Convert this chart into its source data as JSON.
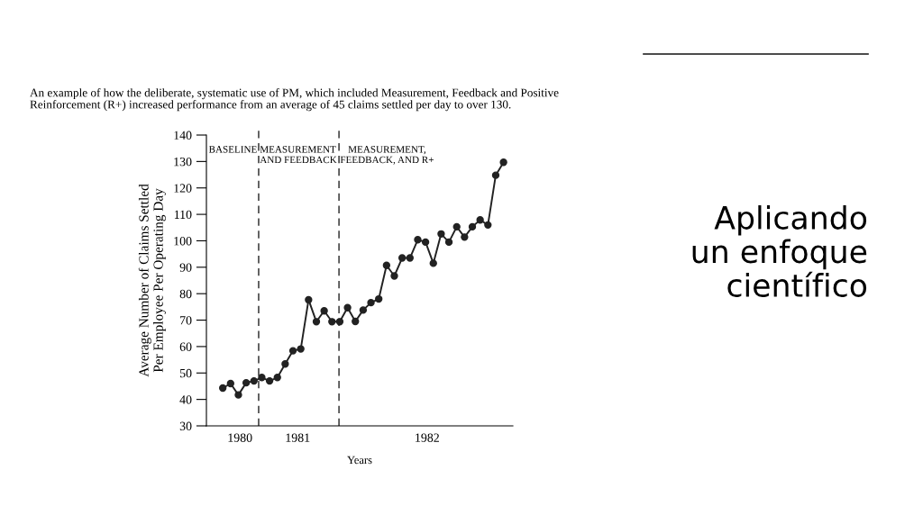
{
  "chart_data": {
    "type": "line",
    "title": "An example of how the deliberate, systematic use of PM, which included Measurement, Feedback and Positive\nReinforcement (R+) increased performance from an average of 45 claims settled per day to over 130.",
    "xlabel": "Years",
    "ylabel": "Average Number of Claims Settled\nPer Employee Per Operating Day",
    "categories": [
      null,
      null,
      null,
      null,
      null,
      null,
      null,
      null,
      null,
      null,
      null,
      null,
      null,
      null,
      null,
      null,
      null,
      null,
      null,
      null,
      null,
      null,
      null,
      null,
      null,
      null,
      null,
      null,
      null,
      null,
      null,
      null,
      null,
      null,
      null,
      null,
      null
    ],
    "series": [
      {
        "color": "#222222",
        "values": [
          44.3,
          46,
          41.7,
          46.3,
          47,
          48.3,
          47,
          48.3,
          53.4,
          58.4,
          59.1,
          77.7,
          69.4,
          73.5,
          69.4,
          69.4,
          74.7,
          69.5,
          73.8,
          76.6,
          78,
          90.7,
          86.7,
          93.5,
          93.5,
          100.4,
          99.5,
          91.5,
          102.6,
          99.5,
          105.3,
          101.4,
          105.3,
          107.9,
          106,
          124.8,
          129.7
        ]
      }
    ],
    "ylim": [
      30,
      140
    ],
    "yticks": [
      30,
      40,
      50,
      60,
      70,
      80,
      90,
      100,
      110,
      120,
      130,
      140
    ],
    "marker": "circle",
    "line_style": "solid",
    "grid": false,
    "annotations": [
      "BASELINE",
      "Aplicando\nun enfoque\ncientífico",
      "1980",
      "1981",
      "1982",
      "MEASUREMENT\nAND FEEDBACK",
      "MEASUREMENT,\nFEEDBACK, AND R+"
    ]
  }
}
